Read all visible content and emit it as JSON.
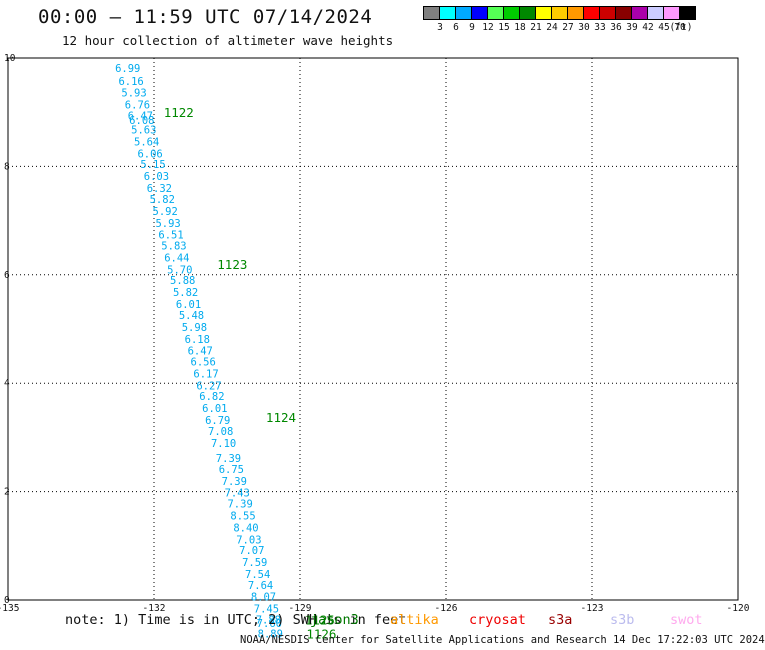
{
  "header": {
    "title": "00:00 – 11:59 UTC 07/14/2024",
    "subtitle": "12 hour collection of altimeter wave heights"
  },
  "legend": {
    "colors": [
      "#808080",
      "#00ffff",
      "#00aaff",
      "#0000ff",
      "#55ff55",
      "#00cc00",
      "#008800",
      "#ffff00",
      "#ffcc00",
      "#ff9900",
      "#ff0000",
      "#cc0000",
      "#880000",
      "#aa00aa",
      "#ccccff",
      "#ff99ff",
      "#000000"
    ],
    "labels": [
      "3",
      "6",
      "9",
      "12",
      "15",
      "18",
      "21",
      "24",
      "27",
      "30",
      "33",
      "36",
      "39",
      "42",
      "45",
      "70",
      "(ft)"
    ]
  },
  "chart_data": {
    "type": "scatter",
    "x_ticks": [
      "-135",
      "-132",
      "-129",
      "-126",
      "-123",
      "-120"
    ],
    "y_ticks": [
      "0",
      "2",
      "4",
      "6",
      "8",
      "10"
    ],
    "xlim": [
      -135,
      -120
    ],
    "ylim": [
      0,
      10
    ],
    "grid": true,
    "value_color": "#00aaee",
    "time_color": "#008800",
    "values": [
      {
        "x": -132.8,
        "y": 9.82,
        "label": "6.99"
      },
      {
        "x": -132.73,
        "y": 9.58,
        "label": "6.16"
      },
      {
        "x": -132.67,
        "y": 9.36,
        "label": "5.93"
      },
      {
        "x": -132.6,
        "y": 9.14,
        "label": "6.76"
      },
      {
        "x": -132.54,
        "y": 8.94,
        "label": "6.47"
      },
      {
        "x": -132.51,
        "y": 8.86,
        "label": "6.08"
      },
      {
        "x": -132.47,
        "y": 8.68,
        "label": "5.63"
      },
      {
        "x": -132.41,
        "y": 8.46,
        "label": "5.64"
      },
      {
        "x": -132.34,
        "y": 8.24,
        "label": "6.06"
      },
      {
        "x": -132.28,
        "y": 8.04,
        "label": "5.15"
      },
      {
        "x": -132.21,
        "y": 7.82,
        "label": "6.03"
      },
      {
        "x": -132.15,
        "y": 7.6,
        "label": "6.32"
      },
      {
        "x": -132.09,
        "y": 7.4,
        "label": "5.82"
      },
      {
        "x": -132.03,
        "y": 7.18,
        "label": "5.92"
      },
      {
        "x": -131.97,
        "y": 6.96,
        "label": "5.93"
      },
      {
        "x": -131.91,
        "y": 6.74,
        "label": "6.51"
      },
      {
        "x": -131.85,
        "y": 6.54,
        "label": "5.83"
      },
      {
        "x": -131.79,
        "y": 6.32,
        "label": "6.44"
      },
      {
        "x": -131.73,
        "y": 6.1,
        "label": "5.70"
      },
      {
        "x": -131.67,
        "y": 5.9,
        "label": "5.88"
      },
      {
        "x": -131.61,
        "y": 5.68,
        "label": "5.82"
      },
      {
        "x": -131.55,
        "y": 5.46,
        "label": "6.01"
      },
      {
        "x": -131.49,
        "y": 5.26,
        "label": "5.48"
      },
      {
        "x": -131.43,
        "y": 5.04,
        "label": "5.98"
      },
      {
        "x": -131.37,
        "y": 4.82,
        "label": "6.18"
      },
      {
        "x": -131.31,
        "y": 4.6,
        "label": "6.47"
      },
      {
        "x": -131.25,
        "y": 4.4,
        "label": "6.56"
      },
      {
        "x": -131.19,
        "y": 4.18,
        "label": "6.17"
      },
      {
        "x": -131.13,
        "y": 3.96,
        "label": "6.27"
      },
      {
        "x": -131.07,
        "y": 3.76,
        "label": "6.82"
      },
      {
        "x": -131.01,
        "y": 3.54,
        "label": "6.01"
      },
      {
        "x": -130.95,
        "y": 3.32,
        "label": "6.79"
      },
      {
        "x": -130.89,
        "y": 3.12,
        "label": "7.08"
      },
      {
        "x": -130.83,
        "y": 2.9,
        "label": "7.10"
      },
      {
        "x": -130.73,
        "y": 2.62,
        "label": "7.39"
      },
      {
        "x": -130.67,
        "y": 2.42,
        "label": "6.75"
      },
      {
        "x": -130.61,
        "y": 2.2,
        "label": "7.39"
      },
      {
        "x": -130.55,
        "y": 1.98,
        "label": "7.43"
      },
      {
        "x": -130.49,
        "y": 1.78,
        "label": "7.39"
      },
      {
        "x": -130.43,
        "y": 1.56,
        "label": "8.55"
      },
      {
        "x": -130.37,
        "y": 1.34,
        "label": "8.40"
      },
      {
        "x": -130.31,
        "y": 1.12,
        "label": "7.03"
      },
      {
        "x": -130.25,
        "y": 0.92,
        "label": "7.07"
      },
      {
        "x": -130.19,
        "y": 0.7,
        "label": "7.59"
      },
      {
        "x": -130.13,
        "y": 0.48,
        "label": "7.54"
      },
      {
        "x": -130.07,
        "y": 0.28,
        "label": "7.64"
      },
      {
        "x": -130.01,
        "y": 0.06,
        "label": "8.07"
      },
      {
        "x": -129.95,
        "y": -0.16,
        "label": "7.45"
      },
      {
        "x": -129.91,
        "y": -0.36,
        "label": "7.88"
      },
      {
        "x": -129.89,
        "y": -0.42,
        "label": "7.60"
      },
      {
        "x": -129.87,
        "y": -0.62,
        "label": "8.89"
      }
    ],
    "time_labels": [
      {
        "x": -131.8,
        "y": 9.0,
        "label": "1122"
      },
      {
        "x": -130.7,
        "y": 6.2,
        "label": "1123"
      },
      {
        "x": -129.7,
        "y": 3.38,
        "label": "1124"
      },
      {
        "x": -128.9,
        "y": -0.36,
        "label": "1125"
      },
      {
        "x": -128.87,
        "y": -0.62,
        "label": "1126"
      }
    ]
  },
  "note": {
    "text": "note: 1) Time is in UTC; 2) SWH is in feet",
    "satellites": [
      {
        "name": "jason3",
        "color": "#007700"
      },
      {
        "name": "altika",
        "color": "#ff9900"
      },
      {
        "name": "cryosat",
        "color": "#ee0000"
      },
      {
        "name": "s3a",
        "color": "#990000"
      },
      {
        "name": "s3b",
        "color": "#bbbbee"
      },
      {
        "name": "swot",
        "color": "#ffaaee"
      }
    ]
  },
  "credit": "NOAA/NESDIS Center for Satellite Applications and Research    14 Dec 17:22:03 UTC 2024"
}
